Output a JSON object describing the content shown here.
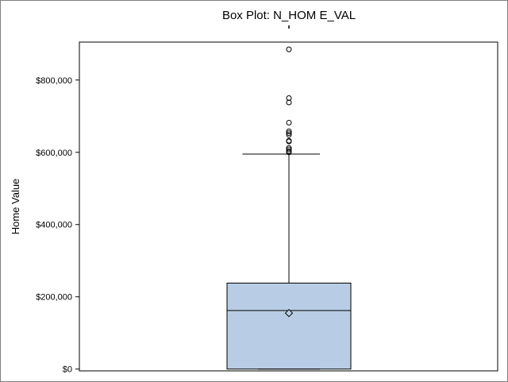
{
  "chart_data": {
    "type": "box",
    "title": "Box Plot: N_HOM E_VAL",
    "xlabel": "",
    "ylabel": "Home Value",
    "ylim": [
      -5000,
      905000
    ],
    "yticks": [
      0,
      200000,
      400000,
      600000,
      800000
    ],
    "ytick_labels": [
      "$0",
      "$200,000",
      "$400,000",
      "$600,000",
      "$800,000"
    ],
    "grid": false,
    "box": {
      "whisker_low": 0,
      "q1": 0,
      "median": 162000,
      "mean": 155000,
      "q3": 238000,
      "whisker_high": 595000
    },
    "outliers": [
      600000,
      603000,
      608000,
      612000,
      630000,
      632000,
      648000,
      653000,
      658000,
      682000,
      738000,
      750000,
      885000
    ],
    "colors": {
      "box_fill": "#b8cde5",
      "box_stroke": "#000000",
      "frame": "#000000"
    }
  }
}
